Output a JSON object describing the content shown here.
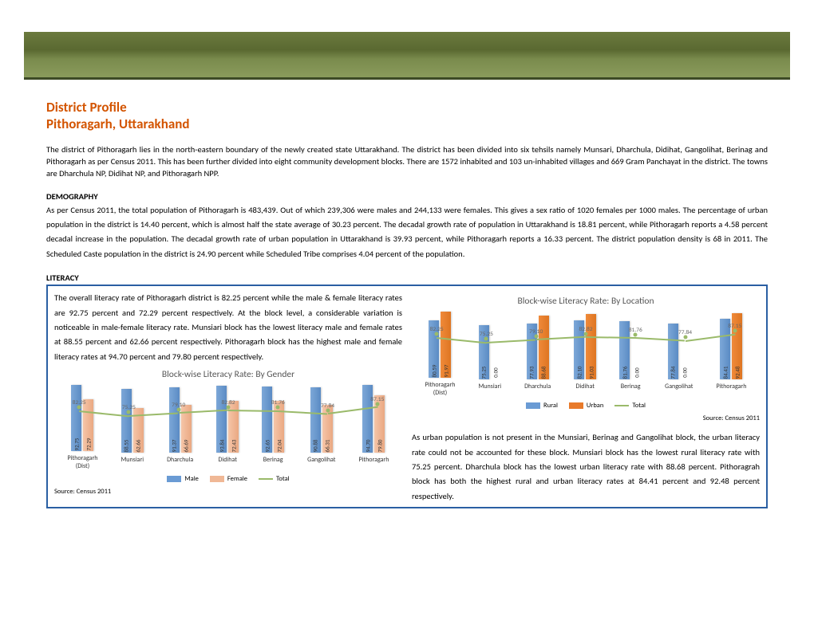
{
  "title1": "District Profile",
  "title2": "Pithoragarh, Uttarakhand",
  "intro": "The district of Pithoragarh lies in the north-eastern boundary of the newly created state Uttarakhand. The district has been divided into six tehsils namely Munsari, Dharchula, Didihat, Gangolihat, Berinag and Pithoragarh as per Census 2011. This has been further divided into eight community development blocks. There are 1572  inhabited and 103 un-inhabited villages and 669 Gram Panchayat in the district. The towns are Dharchula NP, Didihat NP, and Pithoragarh NPP.",
  "demography_h": "DEMOGRAPHY",
  "demography_p": "As per Census 2011, the total population of Pithoragarh is 483,439. Out of which 239,306 were males and 244,133 were females. This gives a sex ratio of 1020 females per 1000 males. The  percentage of urban population in the district is 14.40 percent, which is almost half the state average of 30.23 percent. The decadal growth rate of population in Uttarakhand is 18.81 percent, while Pithoragarh reports a 4.58 percent decadal increase in the population. The decadal growth rate of urban population in  Uttarakhand is 39.93 percent, while Pithoragarh reports a 16.33 percent. The district population density is 68 in 2011. The Scheduled Caste population in the district is 24.90 percent while Scheduled Tribe comprises 4.04 percent of the population.",
  "literacy_h": "LITERACY",
  "lit_p1": "The overall literacy rate of Pithoragarh district is 82.25 percent while the male & female literacy rates are 92.75 percent and 72.29 percent respectively. At the block level, a considerable variation is noticeable in male-female literacy rate. Munsiari block has the lowest literacy male and female rates at 88.55 percent and 62.66 percent respectively. Pithoragarh block has the highest male and female  literacy rates at 94.70 percent and 79.80 percent respectively.",
  "lit_p2": "As urban population is not present in the Munsiari, Berinag and Gangolihat block, the urban literacy rate could not be accounted for these block. Munsiari block has the lowest rural literacy rate with 75.25 percent. Dharchula block has the lowest urban literacy rate with 88.68 percent. Pithoragrah block has both the highest rural and urban literacy rates at 84.41 percent and 92.48 percent respectively.",
  "source": "Source: Census 2011",
  "gender_chart": {
    "title": "Block-wise Literacy Rate: By Gender",
    "categories": [
      "Pithoragarh\n(Dist)",
      "Munsiari",
      "Dharchula",
      "Didihat",
      "Berinag",
      "Gangolihat",
      "Pithoragarh"
    ],
    "male": [
      92.75,
      88.55,
      91.37,
      93.84,
      92.65,
      90.88,
      94.7
    ],
    "female": [
      72.29,
      62.66,
      66.69,
      72.43,
      72.04,
      66.31,
      79.8
    ],
    "total": [
      82.25,
      75.25,
      79.1,
      82.82,
      81.76,
      77.84,
      87.15
    ],
    "legend": [
      "Male",
      "Female",
      "Total"
    ]
  },
  "location_chart": {
    "title": "Block-wise Literacy Rate: By Location",
    "categories": [
      "Pithoragarh\n(Dist)",
      "Munsiari",
      "Dharchula",
      "Didihat",
      "Berinag",
      "Gangolihat",
      "Pithoragarh"
    ],
    "rural": [
      80.59,
      75.25,
      77.93,
      82.1,
      81.76,
      77.84,
      84.41
    ],
    "urban": [
      91.97,
      0.0,
      88.68,
      91.03,
      0.0,
      0.0,
      92.48
    ],
    "total": [
      82.25,
      75.25,
      79.1,
      82.82,
      81.76,
      77.84,
      87.15
    ],
    "legend": [
      "Rural",
      "Urban",
      "Total"
    ]
  },
  "colors": {
    "male": "#6a9bd4",
    "female": "#f0b896",
    "rural": "#6a9bd4",
    "urban": "#e87a2a",
    "total": "#9aba6a"
  }
}
